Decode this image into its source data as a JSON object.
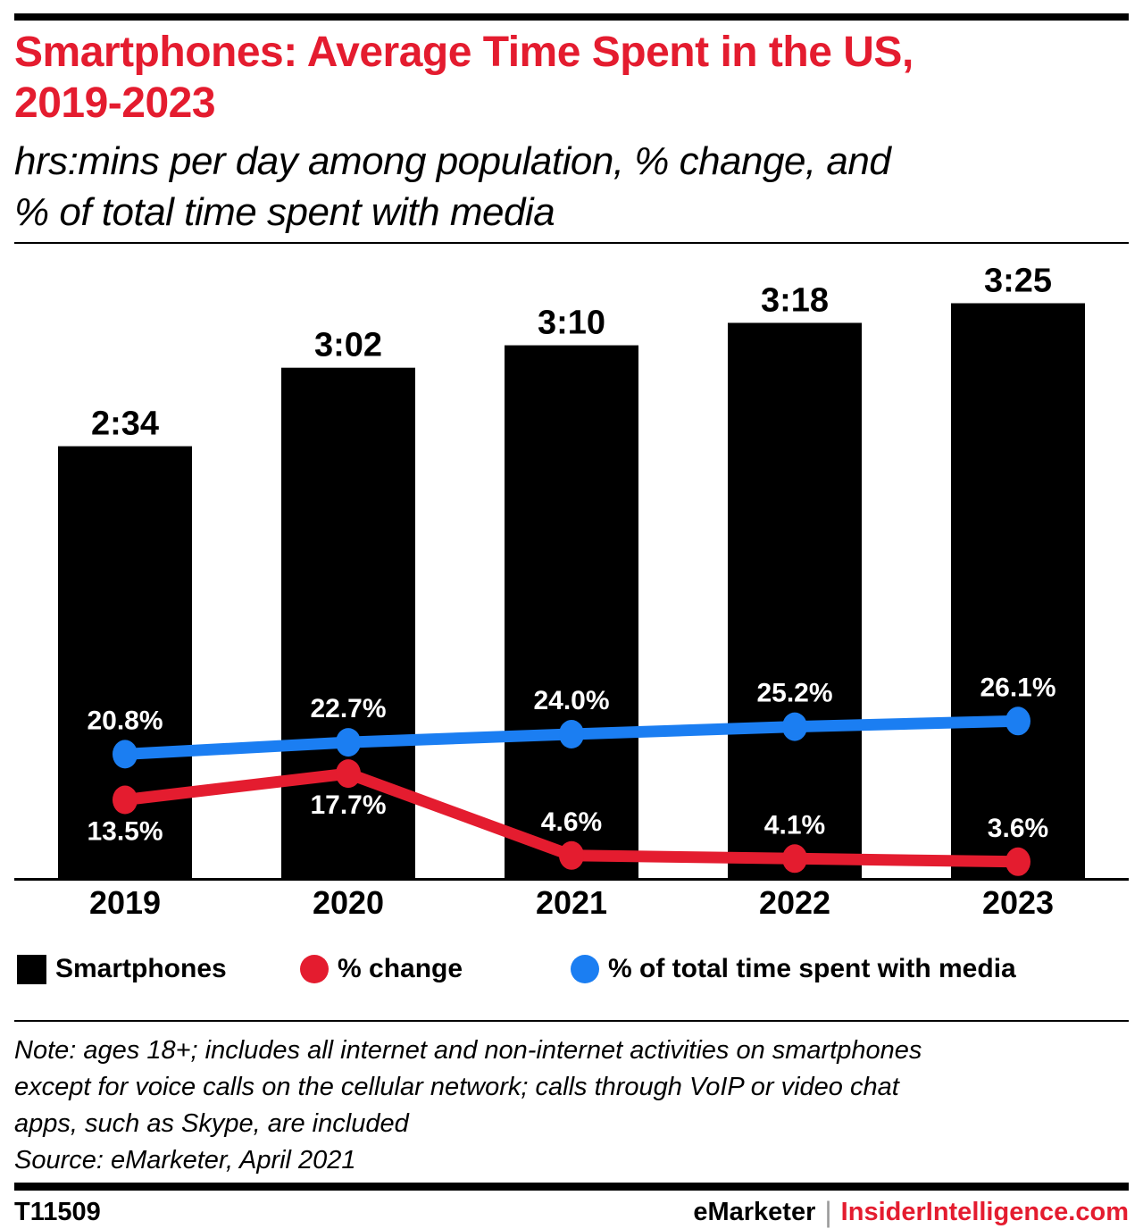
{
  "header": {
    "title_lines": [
      "Smartphones: Average Time Spent in the US,",
      "2019-2023"
    ],
    "subtitle_lines": [
      "hrs:mins per day among population, % change, and",
      "% of total time spent with media"
    ]
  },
  "chart_data": {
    "type": "bar",
    "title": "Smartphones: Average Time Spent in the US, 2019-2023",
    "subtitle": "hrs:mins per day among population, % change, and % of total time spent with media",
    "categories": [
      "2019",
      "2020",
      "2021",
      "2022",
      "2023"
    ],
    "grid": false,
    "legend_position": "bottom",
    "series": [
      {
        "name": "Smartphones",
        "type": "bar",
        "unit": "hrs:mins per day",
        "value_labels": [
          "2:34",
          "3:02",
          "3:10",
          "3:18",
          "3:25"
        ],
        "values_minutes": [
          154,
          182,
          190,
          198,
          205
        ],
        "color": "#000000"
      },
      {
        "name": "% change",
        "type": "line",
        "unit": "%",
        "values": [
          13.5,
          17.7,
          4.6,
          4.1,
          3.6
        ],
        "value_labels": [
          "13.5%",
          "17.7%",
          "4.6%",
          "4.1%",
          "3.6%"
        ],
        "label_positions": [
          "below",
          "below",
          "above",
          "above",
          "above"
        ],
        "color": "#e41c2f"
      },
      {
        "name": "% of total time spent with media",
        "type": "line",
        "unit": "%",
        "values": [
          20.8,
          22.7,
          24.0,
          25.2,
          26.1
        ],
        "value_labels": [
          "20.8%",
          "22.7%",
          "24.0%",
          "25.2%",
          "26.1%"
        ],
        "label_positions": [
          "above",
          "above",
          "above",
          "above",
          "above"
        ],
        "color": "#1b7ef2"
      }
    ]
  },
  "legend": {
    "items": [
      {
        "label": "Smartphones",
        "color": "#000000",
        "shape": "square"
      },
      {
        "label": "% change",
        "color": "#e41c2f",
        "shape": "circle"
      },
      {
        "label": "% of total time spent with media",
        "color": "#1b7ef2",
        "shape": "circle"
      }
    ]
  },
  "note": {
    "lines": [
      "Note: ages 18+; includes all internet and non-internet activities on smartphones",
      "except for voice calls on the cellular network; calls through VoIP or video chat",
      "apps, such as Skype, are included",
      "Source: eMarketer, April 2021"
    ]
  },
  "footer": {
    "chart_id": "T11509",
    "brand": "eMarketer",
    "separator": "|",
    "site": "InsiderIntelligence.com"
  },
  "colors": {
    "accent_red": "#e41c2f",
    "line_blue": "#1b7ef2",
    "bar_black": "#000000",
    "separator_gray": "#9a9a9a"
  }
}
